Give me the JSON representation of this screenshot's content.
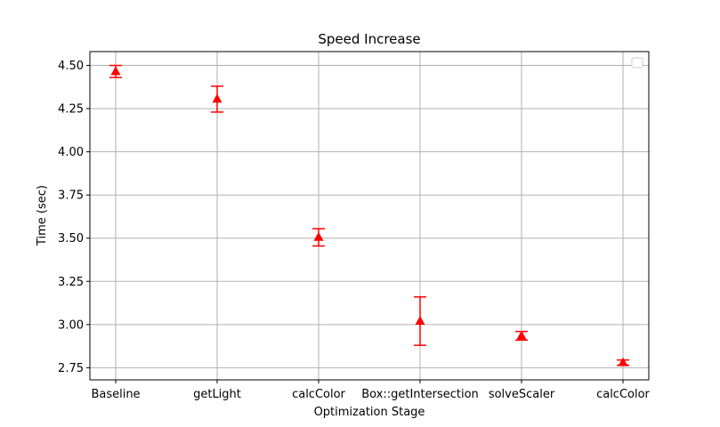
{
  "chart_data": {
    "type": "scatter",
    "title": "Speed Increase",
    "xlabel": "Optimization Stage",
    "ylabel": "Time (sec)",
    "categories": [
      "Baseline",
      "getLight",
      "calcColor",
      "Box::getIntersection",
      "solveScaler",
      "calcColor"
    ],
    "series": [
      {
        "values": [
          4.465,
          4.305,
          3.505,
          3.02,
          2.935,
          2.78
        ],
        "err_low": [
          4.43,
          4.23,
          3.455,
          2.88,
          2.91,
          2.765
        ],
        "err_high": [
          4.5,
          4.38,
          3.555,
          3.16,
          2.96,
          2.795
        ],
        "color": "#ff0000",
        "marker": "triangle"
      }
    ],
    "ylim": [
      2.68,
      4.58
    ],
    "yticks": [
      2.75,
      3.0,
      3.25,
      3.5,
      3.75,
      4.0,
      4.25,
      4.5
    ],
    "ytick_labels": [
      "2.75",
      "3.00",
      "3.25",
      "3.50",
      "3.75",
      "4.00",
      "4.25",
      "4.50"
    ],
    "grid": true,
    "legend": "top-right (empty)"
  }
}
